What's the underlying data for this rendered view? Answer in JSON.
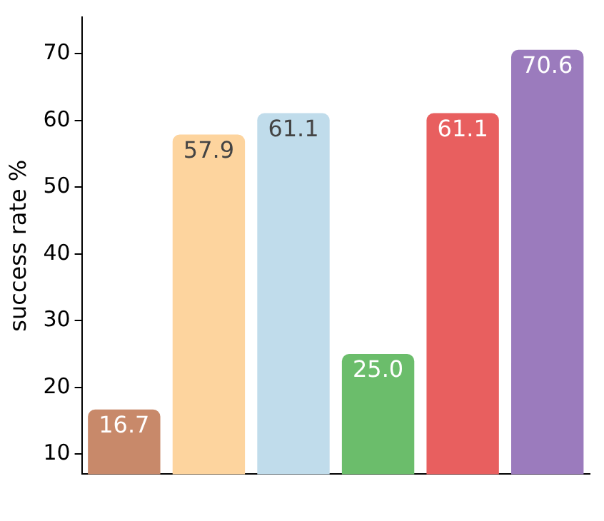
{
  "chart_data": {
    "type": "bar",
    "ylabel": "success rate %",
    "categories": [
      null,
      null,
      null,
      null,
      null,
      null
    ],
    "values": [
      16.7,
      57.9,
      61.1,
      25.0,
      61.1,
      70.6
    ],
    "colors": [
      "#c8896a",
      "#fdd49e",
      "#c0dceb",
      "#6bbd6b",
      "#e85f5f",
      "#9b7bbd"
    ],
    "value_labels": [
      "16.7",
      "57.9",
      "61.1",
      "25.0",
      "61.1",
      "70.6"
    ],
    "ylim": [
      7,
      75.5
    ],
    "yticks": [
      10,
      20,
      30,
      40,
      50,
      60,
      70
    ],
    "grid": false,
    "legend": false
  }
}
